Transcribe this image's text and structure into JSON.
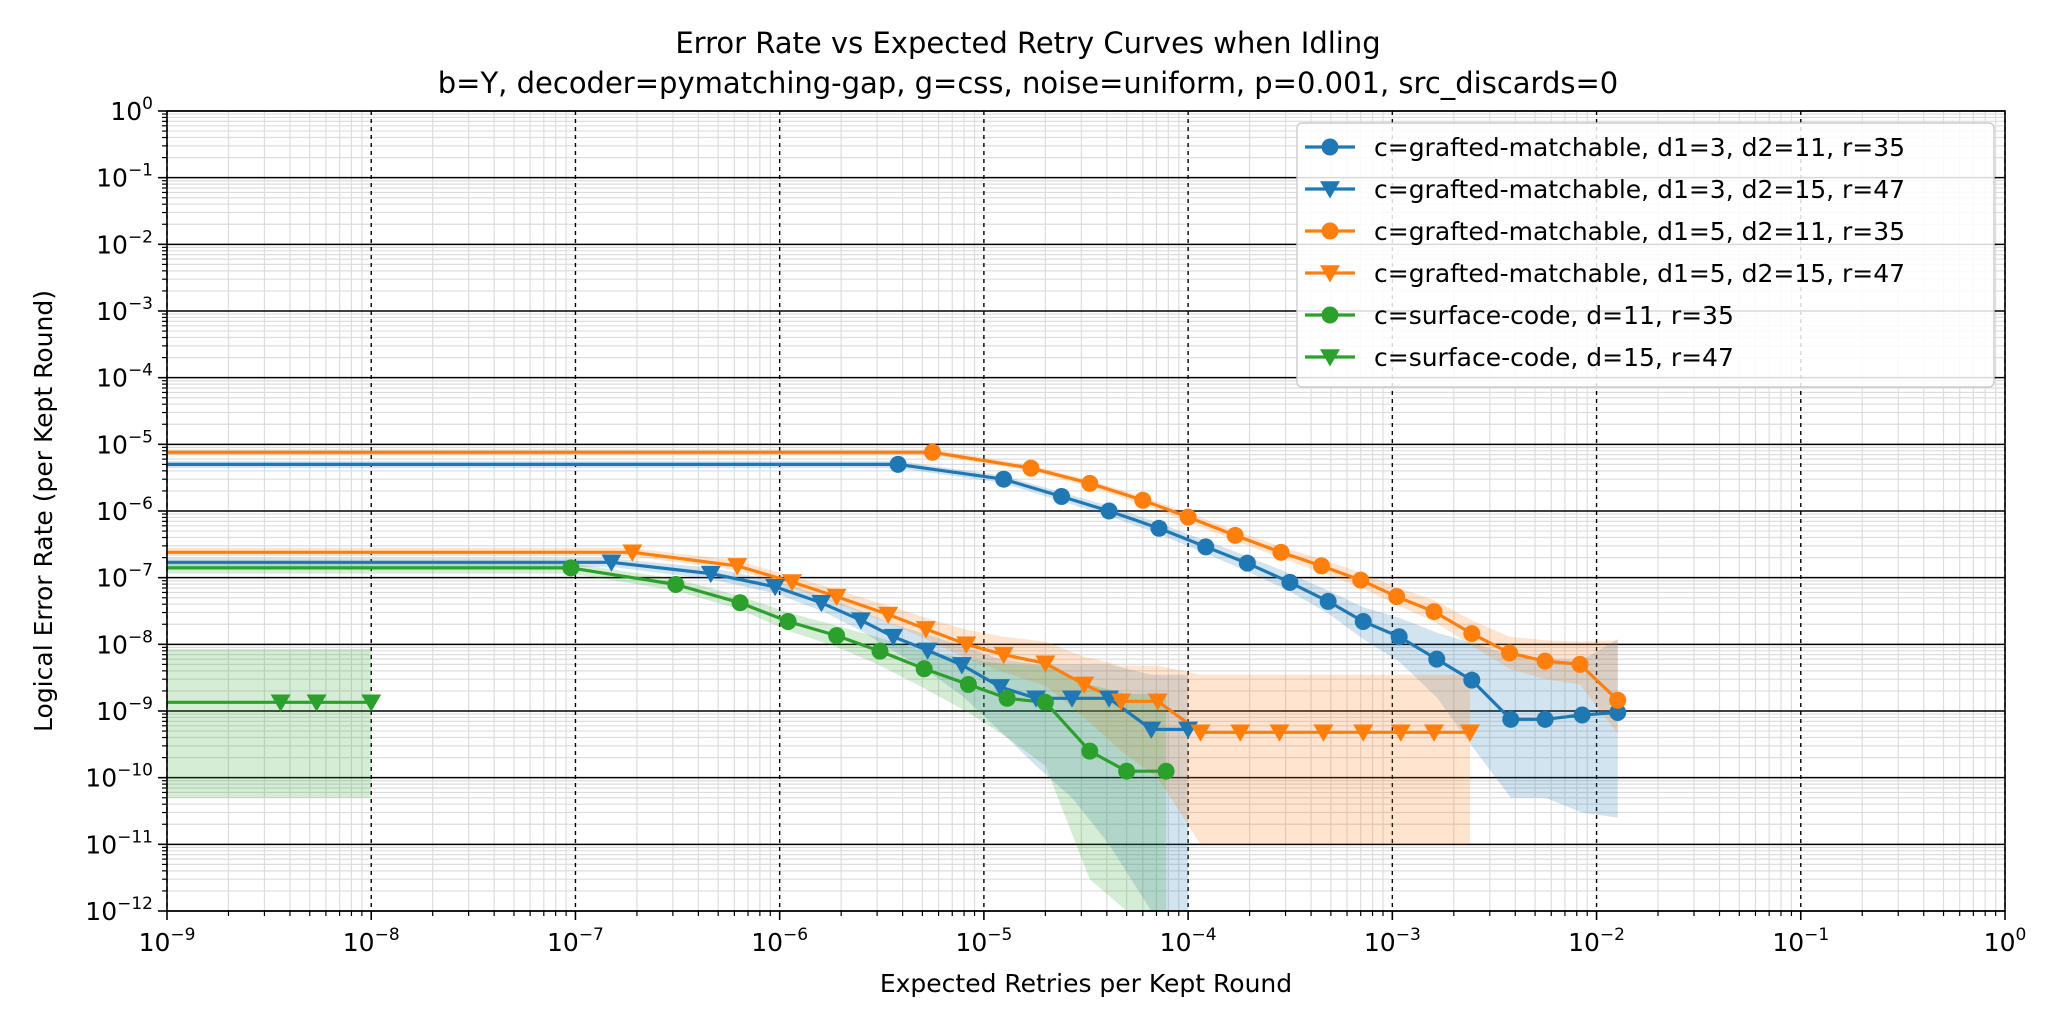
{
  "chart_data": {
    "type": "line",
    "title": "Error Rate vs Expected Retry Curves when Idling",
    "subtitle": "b=Y, decoder=pymatching-gap, g=css, noise=uniform, p=0.001, src_discards=0",
    "xlabel": "Expected Retries per Kept Round",
    "ylabel": "Logical Error Rate (per Kept Round)",
    "xscale": "log",
    "yscale": "log",
    "xlim": [
      1e-09,
      1
    ],
    "ylim": [
      1e-12,
      1
    ],
    "x_ticks": [
      {
        "base": "10",
        "exp": "−9",
        "value": 1e-09
      },
      {
        "base": "10",
        "exp": "−8",
        "value": 1e-08
      },
      {
        "base": "10",
        "exp": "−7",
        "value": 1e-07
      },
      {
        "base": "10",
        "exp": "−6",
        "value": 1e-06
      },
      {
        "base": "10",
        "exp": "−5",
        "value": 1e-05
      },
      {
        "base": "10",
        "exp": "−4",
        "value": 0.0001
      },
      {
        "base": "10",
        "exp": "−3",
        "value": 0.001
      },
      {
        "base": "10",
        "exp": "−2",
        "value": 0.01
      },
      {
        "base": "10",
        "exp": "−1",
        "value": 0.1
      },
      {
        "base": "10",
        "exp": "0",
        "value": 1
      }
    ],
    "y_ticks": [
      {
        "base": "10",
        "exp": "0",
        "value": 1
      },
      {
        "base": "10",
        "exp": "−1",
        "value": 0.1
      },
      {
        "base": "10",
        "exp": "−2",
        "value": 0.01
      },
      {
        "base": "10",
        "exp": "−3",
        "value": 0.001
      },
      {
        "base": "10",
        "exp": "−4",
        "value": 0.0001
      },
      {
        "base": "10",
        "exp": "−5",
        "value": 1e-05
      },
      {
        "base": "10",
        "exp": "−6",
        "value": 1e-06
      },
      {
        "base": "10",
        "exp": "−7",
        "value": 1e-07
      },
      {
        "base": "10",
        "exp": "−8",
        "value": 1e-08
      },
      {
        "base": "10",
        "exp": "−9",
        "value": 1e-09
      },
      {
        "base": "10",
        "exp": "−10",
        "value": 1e-10
      },
      {
        "base": "10",
        "exp": "−11",
        "value": 1e-11
      },
      {
        "base": "10",
        "exp": "−12",
        "value": 1e-12
      }
    ],
    "grid": true,
    "legend_position": "top-right",
    "series": [
      {
        "name": "c=grafted-matchable, d1=3, d2=11, r=35",
        "color": "#1f77b4",
        "marker": "circle",
        "flat_start_x": 1e-09,
        "x": [
          3.8e-06,
          1.25e-05,
          2.4e-05,
          4.1e-05,
          7.2e-05,
          0.000122,
          0.000195,
          0.000315,
          0.000485,
          0.00072,
          0.00108,
          0.00165,
          0.00245,
          0.0038,
          0.0056,
          0.0085,
          0.0127
        ],
        "y": [
          5e-06,
          3e-06,
          1.65e-06,
          1e-06,
          5.5e-07,
          2.9e-07,
          1.65e-07,
          8.5e-08,
          4.4e-08,
          2.2e-08,
          1.3e-08,
          6e-09,
          2.9e-09,
          7.5e-10,
          7.5e-10,
          8.7e-10,
          9.5e-10
        ],
        "band_lower": [
          4.4e-06,
          2.6e-06,
          1.4e-06,
          8.4e-07,
          4.5e-07,
          2.3e-07,
          1.25e-07,
          6.2e-08,
          2.9e-08,
          1.2e-08,
          5.5e-09,
          1.6e-09,
          3e-10,
          5e-11,
          5e-11,
          3e-11,
          2.5e-11
        ],
        "band_upper": [
          5.6e-06,
          3.4e-06,
          1.9e-06,
          1.2e-06,
          6.6e-07,
          3.6e-07,
          2.1e-07,
          1.15e-07,
          6.4e-08,
          3.6e-08,
          2.5e-08,
          1.5e-08,
          1.05e-08,
          7e-09,
          6e-09,
          5.8e-09,
          1.2e-08
        ]
      },
      {
        "name": "c=grafted-matchable, d1=3, d2=15, r=47",
        "color": "#1f77b4",
        "marker": "triangle-down",
        "flat_start_x": 1e-09,
        "x": [
          1.5e-07,
          4.6e-07,
          9.5e-07,
          1.6e-06,
          2.5e-06,
          3.6e-06,
          5.3e-06,
          7.8e-06,
          1.2e-05,
          1.8e-05,
          2.7e-05,
          4.1e-05,
          6.6e-05,
          0.0001
        ],
        "y": [
          1.7e-07,
          1.15e-07,
          7.3e-08,
          4.2e-08,
          2.3e-08,
          1.3e-08,
          8.1e-09,
          4.9e-09,
          2.3e-09,
          1.55e-09,
          1.55e-09,
          1.55e-09,
          5.3e-10,
          5.3e-10
        ],
        "band_lower": [
          1.45e-07,
          9.5e-08,
          5.8e-08,
          3.2e-08,
          1.6e-08,
          8e-09,
          4e-09,
          1.7e-09,
          5e-10,
          1.5e-10,
          5e-11,
          1e-11,
          1e-12,
          1e-12
        ],
        "band_upper": [
          1.95e-07,
          1.4e-07,
          9e-08,
          5.4e-08,
          3.2e-08,
          2e-08,
          1.4e-08,
          9.5e-09,
          6e-09,
          5e-09,
          5e-09,
          5e-09,
          3.5e-09,
          3.5e-09
        ]
      },
      {
        "name": "c=grafted-matchable, d1=5, d2=11, r=35",
        "color": "#ff7f0e",
        "marker": "circle",
        "flat_start_x": 1e-09,
        "x": [
          5.6e-06,
          1.7e-05,
          3.3e-05,
          6e-05,
          0.0001,
          0.00017,
          0.000285,
          0.00045,
          0.0007,
          0.00105,
          0.0016,
          0.00245,
          0.00375,
          0.0056,
          0.0083,
          0.0127
        ],
        "y": [
          7.6e-06,
          4.4e-06,
          2.6e-06,
          1.45e-06,
          8.1e-07,
          4.3e-07,
          2.4e-07,
          1.5e-07,
          9.2e-08,
          5.2e-08,
          3.1e-08,
          1.45e-08,
          7.4e-09,
          5.6e-09,
          5e-09,
          1.45e-09
        ],
        "band_lower": [
          6.9e-06,
          4e-06,
          2.3e-06,
          1.25e-06,
          6.9e-07,
          3.6e-07,
          1.95e-07,
          1.2e-07,
          7.2e-08,
          3.9e-08,
          2.2e-08,
          9.5e-09,
          4.3e-09,
          3e-09,
          2.5e-09,
          4.5e-10
        ],
        "band_upper": [
          8.4e-06,
          4.9e-06,
          2.9e-06,
          1.65e-06,
          9.4e-07,
          5.1e-07,
          2.9e-07,
          1.9e-07,
          1.2e-07,
          7.2e-08,
          4.6e-08,
          2.3e-08,
          1.3e-08,
          1.15e-08,
          1.1e-08,
          1.15e-08
        ]
      },
      {
        "name": "c=grafted-matchable, d1=5, d2=15, r=47",
        "color": "#ff7f0e",
        "marker": "triangle-down",
        "flat_start_x": 1e-09,
        "x": [
          1.9e-07,
          6.2e-07,
          1.15e-06,
          1.9e-06,
          3.4e-06,
          5.2e-06,
          8.2e-06,
          1.25e-05,
          2e-05,
          3.1e-05,
          4.7e-05,
          7.1e-05,
          0.000115,
          0.00018,
          0.00028,
          0.00046,
          0.00072,
          0.0011,
          0.0016,
          0.0024
        ],
        "y": [
          2.4e-07,
          1.5e-07,
          8.6e-08,
          5.2e-08,
          2.8e-08,
          1.7e-08,
          1e-08,
          7e-09,
          5.2e-09,
          2.5e-09,
          1.4e-09,
          1.4e-09,
          4.8e-10,
          4.8e-10,
          4.8e-10,
          4.8e-10,
          4.8e-10,
          4.8e-10,
          4.8e-10,
          4.8e-10
        ],
        "band_lower": [
          2.1e-07,
          1.3e-07,
          7e-08,
          4.1e-08,
          2.1e-08,
          1.2e-08,
          6.2e-09,
          3.8e-09,
          2.4e-09,
          8e-10,
          2.5e-10,
          1e-10,
          1e-11,
          1e-11,
          1e-11,
          1e-11,
          1e-11,
          1e-11,
          1e-11,
          1e-11
        ],
        "band_upper": [
          2.8e-07,
          1.8e-07,
          1.05e-07,
          6.6e-08,
          3.8e-08,
          2.5e-08,
          1.65e-08,
          1.3e-08,
          1.1e-08,
          6.5e-09,
          4.8e-09,
          4.8e-09,
          3.5e-09,
          3.5e-09,
          3.5e-09,
          3.5e-09,
          3.5e-09,
          3.5e-09,
          3.5e-09,
          3.5e-09
        ]
      },
      {
        "name": "c=surface-code, d=11, r=35",
        "color": "#2ca02c",
        "marker": "circle",
        "flat_start_x": 1e-09,
        "x": [
          9.5e-08,
          3.1e-07,
          6.4e-07,
          1.1e-06,
          1.9e-06,
          3.1e-06,
          5.1e-06,
          8.4e-06,
          1.3e-05,
          2e-05,
          3.3e-05,
          5e-05,
          7.8e-05
        ],
        "y": [
          1.4e-07,
          7.9e-08,
          4.2e-08,
          2.2e-08,
          1.35e-08,
          7.9e-09,
          4.3e-09,
          2.5e-09,
          1.55e-09,
          1.35e-09,
          2.5e-10,
          1.25e-10,
          1.25e-10
        ],
        "band_lower": [
          1.15e-07,
          6.4e-08,
          3.3e-08,
          1.6e-08,
          9.2e-09,
          4.8e-09,
          2.2e-09,
          9.5e-10,
          4e-10,
          1.5e-10,
          3e-12,
          1e-12,
          1e-12
        ],
        "band_upper": [
          1.65e-07,
          9.6e-08,
          5.3e-08,
          3e-08,
          1.9e-08,
          1.25e-08,
          8e-09,
          6e-09,
          5e-09,
          4.8e-09,
          2.5e-09,
          1.8e-09,
          1.8e-09
        ]
      },
      {
        "name": "c=surface-code, d=15, r=47",
        "color": "#2ca02c",
        "marker": "triangle-down",
        "flat_start_x": 1e-09,
        "x": [
          3.6e-09,
          5.4e-09,
          1e-08
        ],
        "y": [
          1.35e-09,
          1.35e-09,
          1.35e-09
        ],
        "band_lower": [
          5e-11,
          5e-11,
          5e-11
        ],
        "band_upper": [
          8.5e-09,
          8.5e-09,
          8.5e-09
        ]
      }
    ]
  }
}
